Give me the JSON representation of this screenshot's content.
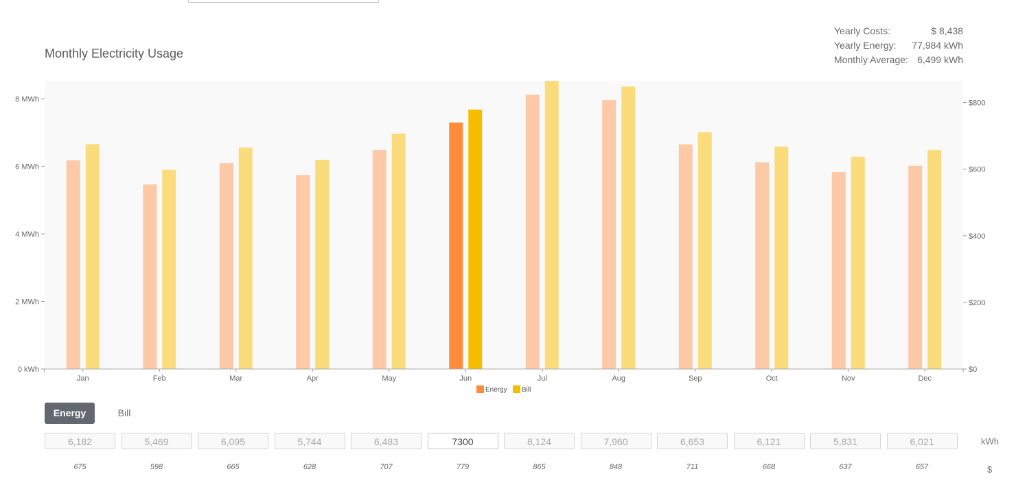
{
  "title": "Monthly Electricity Usage",
  "summary": [
    {
      "label": "Yearly Costs:",
      "value": "$ 8,438"
    },
    {
      "label": "Yearly Energy:",
      "value": "77,984 kWh"
    },
    {
      "label": "Monthly Average:",
      "value": "6,499 kWh"
    }
  ],
  "toggle": {
    "energy_label": "Energy",
    "bill_label": "Bill",
    "active": "Energy"
  },
  "units": {
    "energy": "kWh",
    "bill": "$"
  },
  "energy_inputs": [
    "6,182",
    "5,469",
    "6,095",
    "5,744",
    "6,483",
    "7300",
    "8,124",
    "7,960",
    "6,653",
    "6,121",
    "5,831",
    "6,021"
  ],
  "bill_values": [
    "675",
    "598",
    "665",
    "628",
    "707",
    "779",
    "865",
    "848",
    "711",
    "668",
    "637",
    "657"
  ],
  "colors": {
    "energy": "#ff8c3c",
    "energy_light": "#fec9a6",
    "bill": "#f7be00",
    "bill_light": "#fbdc7c",
    "plot_bg": "#f9f9f9"
  },
  "chart_data": {
    "type": "bar",
    "categories": [
      "Jan",
      "Feb",
      "Mar",
      "Apr",
      "May",
      "Jun",
      "Jul",
      "Aug",
      "Sep",
      "Oct",
      "Nov",
      "Dec"
    ],
    "highlighted_category": "Jun",
    "series": [
      {
        "name": "Energy",
        "axis": "left",
        "values": [
          6182,
          5469,
          6095,
          5744,
          6483,
          7300,
          8124,
          7960,
          6653,
          6121,
          5831,
          6021
        ]
      },
      {
        "name": "Bill",
        "axis": "right",
        "values": [
          675,
          598,
          665,
          628,
          707,
          779,
          865,
          848,
          711,
          668,
          637,
          657
        ]
      }
    ],
    "y_left": {
      "ticks": [
        0,
        2000,
        4000,
        6000,
        8000
      ],
      "tick_labels": [
        "0 kWh",
        "2 MWh",
        "4 MWh",
        "6 MWh",
        "8 MWh"
      ],
      "range": [
        0,
        8532
      ]
    },
    "y_right": {
      "ticks": [
        0,
        200,
        400,
        600,
        800
      ],
      "tick_labels": [
        "$0",
        "$200",
        "$400",
        "$600",
        "$800"
      ],
      "range": [
        0,
        865
      ]
    },
    "legend": {
      "position": "bottom-center",
      "entries": [
        "Energy",
        "Bill"
      ]
    },
    "grid": false
  }
}
